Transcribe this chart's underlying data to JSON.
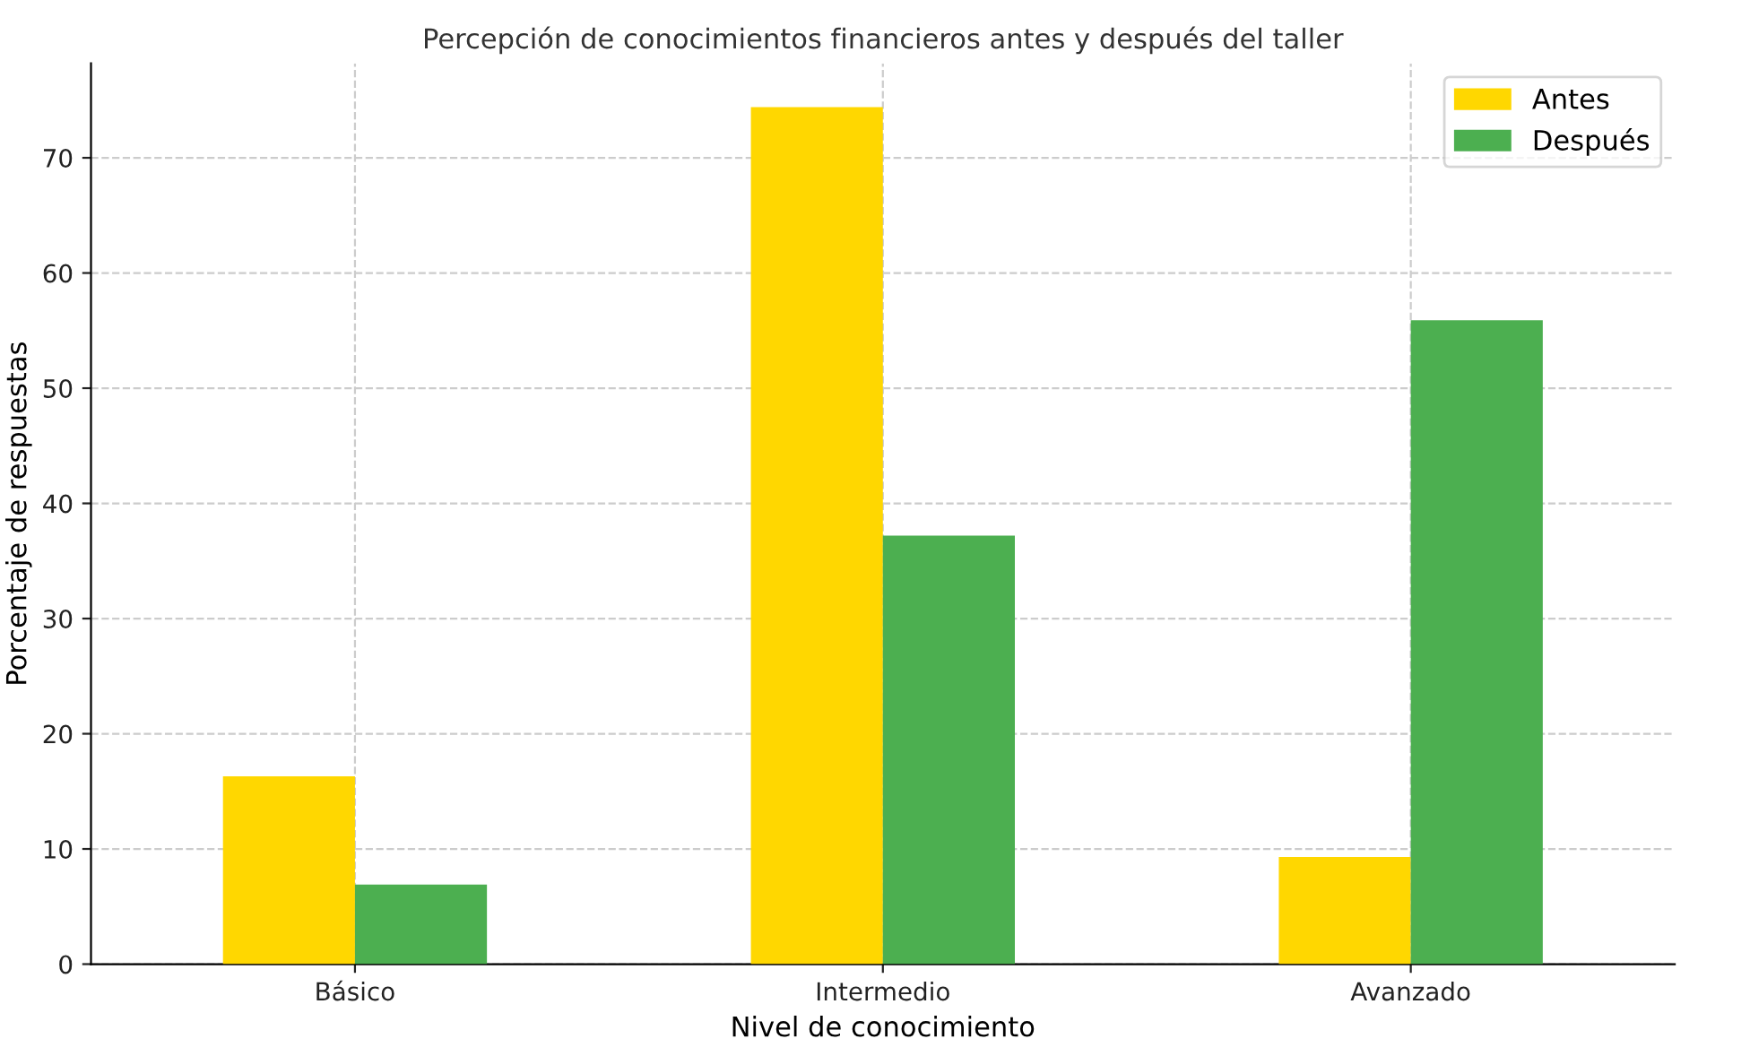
{
  "chart_data": {
    "type": "bar",
    "title": "Percepción de conocimientos financieros antes y después del taller",
    "xlabel": "Nivel de conocimiento",
    "ylabel": "Porcentaje de respuestas",
    "categories": [
      "Básico",
      "Intermedio",
      "Avanzado"
    ],
    "series": [
      {
        "name": "Antes",
        "color": "#ffd700",
        "values": [
          16.3,
          74.4,
          9.3
        ]
      },
      {
        "name": "Después",
        "color": "#4caf50",
        "values": [
          6.9,
          37.2,
          55.9
        ]
      }
    ],
    "ylim": [
      0,
      78.2
    ],
    "yticks": [
      0,
      10,
      20,
      30,
      40,
      50,
      60,
      70
    ],
    "grid": true,
    "legend": "top right"
  }
}
